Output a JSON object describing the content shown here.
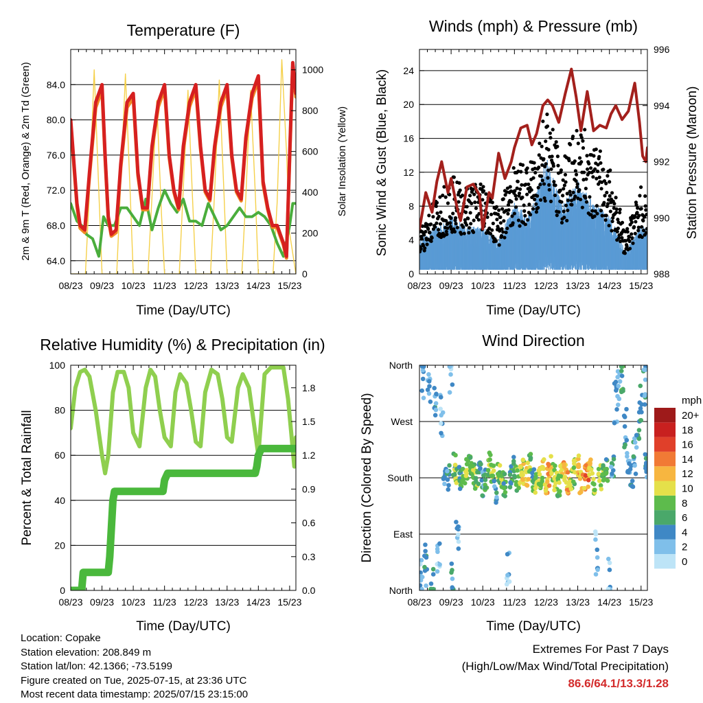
{
  "x_ticks": [
    "08/23",
    "09/23",
    "10/23",
    "11/23",
    "12/23",
    "13/23",
    "14/23",
    "15/23"
  ],
  "chart_data": [
    {
      "type": "line",
      "title": "Temperature (F)",
      "xlabel": "Time (Day/UTC)",
      "ylabel": "2m & 9m T (Red, Orange) & 2m Td (Green)",
      "y2label": "Solar Insolation (Yellow)",
      "ylim": [
        62.5,
        88.0
      ],
      "y2lim": [
        0,
        1100
      ],
      "yticks": [
        "64.0",
        "68.0",
        "72.0",
        "76.0",
        "80.0",
        "84.0"
      ],
      "y2ticks": [
        "0",
        "200",
        "400",
        "600",
        "800",
        "1000"
      ],
      "series": [
        {
          "color": "#d62020",
          "x": [
            8.0,
            8.2,
            8.3,
            8.45,
            8.6,
            8.8,
            9.0,
            9.1,
            9.2,
            9.3,
            9.45,
            9.6,
            9.8,
            10.0,
            10.15,
            10.3,
            10.45,
            10.6,
            10.8,
            11.0,
            11.15,
            11.3,
            11.45,
            11.6,
            11.8,
            12.0,
            12.15,
            12.3,
            12.45,
            12.6,
            12.8,
            13.0,
            13.15,
            13.3,
            13.45,
            13.6,
            13.8,
            14.0,
            14.15,
            14.3,
            14.45,
            14.6,
            14.8,
            14.9,
            15.0,
            15.1,
            15.2
          ],
          "y": [
            80.0,
            70.5,
            68.0,
            67.5,
            74.0,
            82.0,
            84.0,
            76.0,
            69.0,
            67.0,
            67.5,
            75.0,
            82.0,
            83.0,
            74.0,
            70.0,
            70.0,
            77.0,
            82.0,
            84.0,
            76.0,
            72.0,
            70.0,
            77.0,
            82.0,
            84.0,
            77.0,
            72.0,
            71.0,
            77.0,
            82.0,
            84.0,
            76.0,
            72.0,
            71.0,
            78.0,
            83.0,
            85.0,
            73.0,
            70.0,
            68.0,
            68.0,
            66.0,
            64.5,
            76.0,
            86.5,
            83.0
          ]
        },
        {
          "color": "#f08a24",
          "x": [
            8.0,
            8.2,
            8.3,
            8.45,
            8.6,
            8.8,
            9.0,
            9.1,
            9.2,
            9.3,
            9.45,
            9.6,
            9.8,
            10.0,
            10.15,
            10.3,
            10.45,
            10.6,
            10.8,
            11.0,
            11.15,
            11.3,
            11.45,
            11.6,
            11.8,
            12.0,
            12.15,
            12.3,
            12.45,
            12.6,
            12.8,
            13.0,
            13.15,
            13.3,
            13.45,
            13.6,
            13.8,
            14.0,
            14.15,
            14.3,
            14.45,
            14.6,
            14.8,
            14.9,
            15.0,
            15.1,
            15.2
          ],
          "y": [
            79.6,
            70.2,
            67.7,
            67.2,
            73.6,
            81.4,
            83.4,
            75.6,
            68.8,
            66.8,
            67.2,
            74.6,
            81.4,
            82.5,
            73.7,
            69.8,
            69.8,
            76.6,
            81.5,
            83.5,
            75.7,
            71.8,
            69.8,
            76.6,
            81.5,
            83.5,
            76.7,
            71.8,
            70.8,
            76.6,
            81.5,
            83.5,
            75.7,
            71.8,
            70.8,
            77.6,
            82.5,
            84.5,
            72.7,
            69.8,
            67.8,
            67.8,
            65.8,
            64.3,
            75.6,
            86.0,
            82.6
          ]
        },
        {
          "color": "#4aad3c",
          "x": [
            8.0,
            8.2,
            8.35,
            8.5,
            8.7,
            8.9,
            9.05,
            9.2,
            9.4,
            9.6,
            9.8,
            10.0,
            10.2,
            10.4,
            10.6,
            10.8,
            11.0,
            11.2,
            11.4,
            11.6,
            11.8,
            12.0,
            12.2,
            12.4,
            12.6,
            12.8,
            13.0,
            13.2,
            13.4,
            13.6,
            13.8,
            14.0,
            14.2,
            14.4,
            14.6,
            14.8,
            15.0,
            15.1,
            15.2
          ],
          "y": [
            70.5,
            68.5,
            68.0,
            67.0,
            66.5,
            64.5,
            69.0,
            68.0,
            68.0,
            70.0,
            70.0,
            69.0,
            68.0,
            71.0,
            67.5,
            70.0,
            72.0,
            70.5,
            69.5,
            71.0,
            68.5,
            68.5,
            68.0,
            70.5,
            69.0,
            67.5,
            68.0,
            69.0,
            70.0,
            69.0,
            69.0,
            69.5,
            69.0,
            68.0,
            66.0,
            64.5,
            68.0,
            70.5,
            70.5
          ]
        },
        {
          "color": "#f5d04a",
          "x": [
            8.0,
            8.47,
            8.6,
            8.75,
            8.9,
            9.0,
            9.47,
            9.6,
            9.75,
            9.9,
            10.0,
            10.47,
            10.6,
            10.75,
            10.9,
            11.0,
            11.47,
            11.6,
            11.75,
            11.9,
            12.0,
            12.47,
            12.6,
            12.75,
            12.9,
            13.0,
            13.47,
            13.6,
            13.75,
            13.9,
            14.0,
            14.47,
            14.6,
            14.75,
            14.9,
            15.0,
            15.2
          ],
          "y": [
            0,
            0,
            400,
            1000,
            400,
            0,
            0,
            450,
            980,
            400,
            0,
            0,
            380,
            850,
            300,
            0,
            0,
            420,
            900,
            350,
            0,
            0,
            400,
            950,
            400,
            0,
            0,
            380,
            900,
            400,
            0,
            0,
            350,
            1050,
            600,
            200,
            0
          ]
        }
      ]
    },
    {
      "type": "line",
      "title": "Winds (mph) & Pressure (mb)",
      "xlabel": "Time (Day/UTC)",
      "ylabel": "Sonic Wind & Gust (Blue, Black)",
      "y2label": "Station Pressure (Maroon)",
      "ylim": [
        0,
        26.5
      ],
      "y2lim": [
        988,
        996
      ],
      "yticks": [
        "0",
        "4",
        "8",
        "12",
        "16",
        "20",
        "24"
      ],
      "y2ticks": [
        "988",
        "990",
        "992",
        "994",
        "996"
      ],
      "series": [
        {
          "color": "#5a9bd5",
          "x": [
            8.0,
            8.5,
            9.0,
            9.5,
            10.0,
            10.5,
            11.0,
            11.5,
            12.0,
            12.5,
            13.0,
            13.5,
            14.0,
            14.5,
            15.0,
            15.2
          ],
          "y": [
            3,
            4,
            5,
            4,
            4,
            3,
            6,
            5,
            10,
            6,
            8,
            6,
            5,
            2,
            4,
            4
          ]
        },
        {
          "color": "#000000",
          "x": [
            8.0,
            8.5,
            9.0,
            9.5,
            10.0,
            10.5,
            11.0,
            11.5,
            12.0,
            12.5,
            13.0,
            13.5,
            14.0,
            14.5,
            15.0,
            15.2
          ],
          "y": [
            4,
            7,
            9,
            8,
            9,
            6,
            10,
            10,
            16,
            10,
            14,
            12,
            10,
            4,
            8,
            7
          ]
        },
        {
          "color": "#a3201c",
          "x": [
            8.0,
            8.2,
            8.4,
            8.55,
            8.7,
            8.9,
            9.0,
            9.2,
            9.3,
            9.5,
            9.7,
            9.9,
            10.0,
            10.2,
            10.3,
            10.5,
            10.7,
            10.9,
            11.0,
            11.2,
            11.4,
            11.55,
            11.7,
            11.9,
            12.05,
            12.2,
            12.4,
            12.6,
            12.8,
            12.95,
            13.1,
            13.3,
            13.5,
            13.7,
            13.9,
            14.05,
            14.2,
            14.4,
            14.6,
            14.8,
            14.95,
            15.05,
            15.15,
            15.2
          ],
          "y": [
            989.6,
            990.9,
            990.2,
            991.3,
            992.0,
            990.9,
            991.4,
            990.3,
            989.9,
            991.1,
            991.2,
            990.8,
            989.6,
            990.9,
            990.7,
            992.3,
            991.4,
            992.0,
            992.5,
            993.2,
            993.3,
            992.6,
            993.0,
            994.0,
            994.2,
            994.0,
            993.4,
            994.4,
            995.3,
            994.3,
            993.1,
            994.5,
            993.1,
            993.3,
            993.2,
            993.7,
            994.0,
            993.5,
            993.8,
            994.8,
            993.4,
            992.2,
            992.0,
            992.5
          ]
        }
      ]
    },
    {
      "type": "line",
      "title": "Relative Humidity (%) & Precipitation (in)",
      "xlabel": "Time (Day/UTC)",
      "ylabel": "Percent & Total Rainfall",
      "ylim": [
        0,
        100
      ],
      "y2lim": [
        0.0,
        2.0
      ],
      "yticks": [
        "0",
        "20",
        "40",
        "60",
        "80",
        "100"
      ],
      "y2ticks": [
        "0.0",
        "0.3",
        "0.6",
        "0.9",
        "1.2",
        "1.5",
        "1.8"
      ],
      "series": [
        {
          "color": "#8fcf4f",
          "x": [
            8.0,
            8.15,
            8.3,
            8.45,
            8.6,
            8.8,
            9.0,
            9.1,
            9.2,
            9.35,
            9.5,
            9.7,
            9.85,
            10.0,
            10.2,
            10.4,
            10.55,
            10.7,
            10.85,
            11.0,
            11.2,
            11.35,
            11.5,
            11.7,
            11.85,
            12.0,
            12.15,
            12.3,
            12.5,
            12.7,
            12.85,
            13.0,
            13.15,
            13.35,
            13.5,
            13.7,
            13.85,
            14.0,
            14.2,
            14.4,
            14.6,
            14.8,
            14.95,
            15.05,
            15.15,
            15.2
          ],
          "y": [
            72,
            90,
            97,
            98,
            95,
            80,
            60,
            52,
            60,
            88,
            97,
            97,
            90,
            70,
            64,
            90,
            98,
            95,
            80,
            68,
            64,
            88,
            96,
            92,
            80,
            66,
            64,
            88,
            98,
            96,
            85,
            68,
            66,
            90,
            96,
            90,
            75,
            60,
            96,
            99,
            99,
            99,
            85,
            70,
            55,
            68
          ]
        },
        {
          "color": "#4ab83c",
          "x": [
            8.0,
            8.35,
            8.4,
            9.2,
            9.25,
            9.35,
            9.4,
            9.7,
            10.5,
            10.95,
            11.0,
            11.1,
            12.5,
            13.3,
            13.9,
            13.95,
            14.0,
            14.1,
            15.2
          ],
          "y": [
            0,
            0,
            8,
            8,
            15,
            40,
            44,
            44,
            44,
            44,
            49,
            52,
            52,
            52,
            52,
            55,
            60,
            63,
            63
          ]
        }
      ]
    },
    {
      "type": "scatter",
      "title": "Wind Direction",
      "xlabel": "Time (Day/UTC)",
      "ylabel": "Direction (Colored By Speed)",
      "yticks": [
        "North",
        "East",
        "South",
        "West",
        "North"
      ],
      "legend_title": "mph",
      "legend_labels": [
        "0",
        "2",
        "4",
        "6",
        "8",
        "10",
        "12",
        "14",
        "16",
        "18",
        "20+"
      ],
      "legend_colors": [
        "#bde4f7",
        "#7fbfea",
        "#3f88c5",
        "#4aa86a",
        "#5dbb4c",
        "#e5e04a",
        "#f7b640",
        "#f17a35",
        "#e0402a",
        "#c8201f",
        "#9e1a1a"
      ],
      "series": [
        {
          "name": "wind_direction",
          "x": [
            8.05,
            8.1,
            8.2,
            8.3,
            8.4,
            8.5,
            8.6,
            8.7,
            8.8,
            8.9,
            9.0,
            9.05,
            9.1,
            9.15,
            9.2,
            9.3,
            9.4,
            9.5,
            9.6,
            9.7,
            9.8,
            9.9,
            10.0,
            10.1,
            10.2,
            10.3,
            10.4,
            10.5,
            10.6,
            10.7,
            10.8,
            10.9,
            11.0,
            11.1,
            11.2,
            11.3,
            11.4,
            11.5,
            11.6,
            11.7,
            11.8,
            11.9,
            12.0,
            12.1,
            12.2,
            12.3,
            12.4,
            12.5,
            12.6,
            12.7,
            12.8,
            12.9,
            13.0,
            13.1,
            13.2,
            13.3,
            13.4,
            13.5,
            13.6,
            13.7,
            13.8,
            13.9,
            14.0,
            14.1,
            14.2,
            14.3,
            14.4,
            14.5,
            14.6,
            14.7,
            14.8,
            14.9,
            15.0,
            15.1,
            15.15
          ],
          "y": [
            20,
            340,
            40,
            330,
            10,
            300,
            60,
            280,
            190,
            180,
            350,
            20,
            200,
            190,
            80,
            180,
            175,
            190,
            200,
            185,
            175,
            190,
            170,
            180,
            200,
            185,
            160,
            190,
            175,
            170,
            30,
            185,
            195,
            175,
            180,
            190,
            185,
            200,
            175,
            170,
            180,
            190,
            175,
            185,
            195,
            180,
            170,
            190,
            185,
            175,
            180,
            190,
            200,
            175,
            180,
            185,
            190,
            175,
            60,
            180,
            185,
            190,
            20,
            200,
            300,
            320,
            340,
            260,
            200,
            180,
            220,
            250,
            300,
            330,
            200
          ],
          "speed": [
            2,
            3,
            4,
            2,
            5,
            3,
            1,
            2,
            3,
            4,
            2,
            3,
            6,
            8,
            2,
            5,
            7,
            9,
            6,
            8,
            7,
            5,
            3,
            6,
            8,
            9,
            4,
            7,
            8,
            6,
            1,
            5,
            6,
            8,
            9,
            10,
            11,
            7,
            6,
            8,
            9,
            10,
            11,
            12,
            9,
            8,
            7,
            10,
            11,
            12,
            9,
            8,
            10,
            11,
            12,
            13,
            10,
            9,
            2,
            8,
            7,
            6,
            1,
            4,
            3,
            2,
            5,
            4,
            3,
            4,
            3,
            4,
            4,
            3,
            4
          ]
        }
      ]
    }
  ],
  "info": {
    "location": "Location: Copake",
    "elevation": "Station elevation: 208.849 m",
    "latlon": "Station lat/lon: 42.1366; -73.5199",
    "created": "Figure created on Tue, 2025-07-15, at 23:36 UTC",
    "recent": "Most recent data timestamp: 2025/07/15 23:15:00"
  },
  "extremes": {
    "title": "Extremes For Past 7 Days",
    "subtitle": "(High/Low/Max Wind/Total Precipitation)",
    "values": "86.6/64.1/13.3/1.28"
  }
}
